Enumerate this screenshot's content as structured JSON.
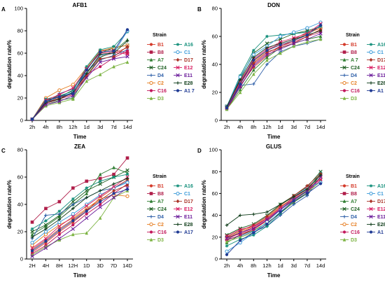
{
  "chart_data": [
    {
      "panel": "A",
      "type": "line",
      "title": "AFB1",
      "xlabel": "Time",
      "ylabel": "degradation rate%",
      "categories": [
        "2h",
        "4h",
        "8h",
        "12h",
        "1d",
        "3d",
        "7d",
        "14d"
      ],
      "ylim": [
        0,
        100
      ],
      "yticks": [
        0,
        20,
        40,
        60,
        80,
        100
      ],
      "legend_title": "Strain",
      "series": [
        {
          "name": "B1",
          "color": "#d43a2a",
          "marker": "circle",
          "values": [
            1,
            16,
            20,
            25,
            42,
            57,
            60,
            65
          ]
        },
        {
          "name": "B8",
          "color": "#b01e4a",
          "marker": "square",
          "values": [
            1,
            17,
            22,
            24,
            45,
            62,
            63,
            60
          ]
        },
        {
          "name": "A7",
          "color": "#2f7d32",
          "marker": "triangle",
          "values": [
            1,
            14,
            18,
            20,
            40,
            56,
            62,
            72
          ]
        },
        {
          "name": "C24",
          "color": "#1b5e20",
          "marker": "x",
          "values": [
            1,
            18,
            21,
            27,
            46,
            60,
            65,
            67
          ]
        },
        {
          "name": "D4",
          "color": "#2e5fa8",
          "marker": "cross",
          "values": [
            1,
            15,
            24,
            28,
            44,
            54,
            58,
            63
          ]
        },
        {
          "name": "C2",
          "color": "#e67e22",
          "marker": "circle-open",
          "values": [
            1,
            20,
            27,
            32,
            47,
            62,
            65,
            67
          ]
        },
        {
          "name": "C16",
          "color": "#c2185b",
          "marker": "circle",
          "values": [
            1,
            15,
            19,
            23,
            41,
            48,
            56,
            62
          ]
        },
        {
          "name": "D3",
          "color": "#7cb342",
          "marker": "triangle",
          "values": [
            1,
            13,
            16,
            19,
            35,
            41,
            48,
            52
          ]
        },
        {
          "name": "A16",
          "color": "#138f7a",
          "marker": "star",
          "values": [
            1,
            19,
            22,
            26,
            48,
            63,
            66,
            79
          ]
        },
        {
          "name": "C1",
          "color": "#3a9ad9",
          "marker": "circle-open",
          "values": [
            1,
            17,
            21,
            25,
            43,
            58,
            60,
            80
          ]
        },
        {
          "name": "D17",
          "color": "#a93226",
          "marker": "diamond",
          "values": [
            1,
            16,
            20,
            24,
            39,
            55,
            57,
            66
          ]
        },
        {
          "name": "E12",
          "color": "#d81b60",
          "marker": "x",
          "values": [
            1,
            18,
            23,
            29,
            46,
            60,
            61,
            59
          ]
        },
        {
          "name": "E11",
          "color": "#6a1b9a",
          "marker": "x",
          "values": [
            1,
            14,
            17,
            22,
            38,
            52,
            55,
            57
          ]
        },
        {
          "name": "E28",
          "color": "#0d3b18",
          "marker": "cross",
          "values": [
            1,
            16,
            19,
            25,
            42,
            59,
            60,
            71
          ]
        },
        {
          "name": "A1 7",
          "color": "#1f3a93",
          "marker": "circle",
          "values": [
            1,
            17,
            21,
            24,
            45,
            61,
            62,
            81
          ]
        }
      ]
    },
    {
      "panel": "B",
      "type": "line",
      "title": "DON",
      "xlabel": "Time",
      "ylabel": "degradation rate%",
      "categories": [
        "2h",
        "4h",
        "8h",
        "12h",
        "1d",
        "3d",
        "7d",
        "14d"
      ],
      "ylim": [
        0,
        80
      ],
      "yticks": [
        0,
        20,
        40,
        60,
        80
      ],
      "legend_title": "Strain",
      "series": [
        {
          "name": "B1",
          "color": "#d43a2a",
          "marker": "circle",
          "values": [
            9,
            25,
            38,
            46,
            53,
            57,
            61,
            64
          ]
        },
        {
          "name": "B8",
          "color": "#b01e4a",
          "marker": "square",
          "values": [
            10,
            28,
            43,
            50,
            55,
            58,
            63,
            66
          ]
        },
        {
          "name": "A 7",
          "color": "#2f7d32",
          "marker": "triangle",
          "values": [
            8,
            22,
            36,
            45,
            52,
            55,
            58,
            60
          ]
        },
        {
          "name": "C24",
          "color": "#1b5e20",
          "marker": "x",
          "values": [
            10,
            30,
            48,
            55,
            58,
            62,
            64,
            67
          ]
        },
        {
          "name": "D4",
          "color": "#2e5fa8",
          "marker": "cross",
          "values": [
            9,
            25,
            26,
            40,
            49,
            53,
            55,
            58
          ]
        },
        {
          "name": "C2",
          "color": "#e67e22",
          "marker": "circle-open",
          "values": [
            9,
            27,
            42,
            50,
            54,
            57,
            62,
            66
          ]
        },
        {
          "name": "C16",
          "color": "#c2185b",
          "marker": "circle",
          "values": [
            8,
            24,
            40,
            48,
            53,
            56,
            60,
            63
          ]
        },
        {
          "name": "D3",
          "color": "#7cb342",
          "marker": "triangle",
          "values": [
            8,
            20,
            33,
            43,
            48,
            53,
            56,
            58
          ]
        },
        {
          "name": "A16",
          "color": "#138f7a",
          "marker": "star",
          "values": [
            10,
            32,
            50,
            60,
            61,
            62,
            63,
            67
          ]
        },
        {
          "name": "C1",
          "color": "#3a9ad9",
          "marker": "circle-open",
          "values": [
            10,
            31,
            47,
            53,
            60,
            63,
            66,
            70
          ]
        },
        {
          "name": "D17",
          "color": "#a93226",
          "marker": "diamond",
          "values": [
            9,
            26,
            41,
            49,
            52,
            55,
            60,
            65
          ]
        },
        {
          "name": "E12",
          "color": "#d81b60",
          "marker": "x",
          "values": [
            9,
            27,
            44,
            51,
            56,
            59,
            62,
            69
          ]
        },
        {
          "name": "E11",
          "color": "#6a1b9a",
          "marker": "x",
          "values": [
            9,
            24,
            39,
            47,
            51,
            55,
            58,
            62
          ]
        },
        {
          "name": "E28",
          "color": "#0d3b18",
          "marker": "cross",
          "values": [
            10,
            29,
            45,
            52,
            55,
            58,
            61,
            64
          ]
        },
        {
          "name": "A1 7",
          "color": "#1f3a93",
          "marker": "circle",
          "values": [
            9,
            26,
            43,
            50,
            54,
            57,
            61,
            68
          ]
        }
      ]
    },
    {
      "panel": "C",
      "type": "line",
      "title": "ZEA",
      "xlabel": "Time",
      "ylabel": "degradation rate%",
      "categories": [
        "2H",
        "4H",
        "8H",
        "12H",
        "1D",
        "3D",
        "7D",
        "14D"
      ],
      "ylim": [
        0,
        80
      ],
      "yticks": [
        0,
        20,
        40,
        60,
        80
      ],
      "legend_title": "Strain",
      "series": [
        {
          "name": "B1",
          "color": "#d43a2a",
          "marker": "circle",
          "values": [
            5,
            12,
            20,
            27,
            35,
            45,
            52,
            58
          ]
        },
        {
          "name": "B8",
          "color": "#b01e4a",
          "marker": "square",
          "values": [
            27,
            37,
            42,
            52,
            57,
            59,
            62,
            74
          ]
        },
        {
          "name": "A7",
          "color": "#2f7d32",
          "marker": "triangle",
          "values": [
            18,
            24,
            31,
            40,
            48,
            62,
            67,
            63
          ]
        },
        {
          "name": "C24",
          "color": "#1b5e20",
          "marker": "x",
          "values": [
            20,
            25,
            32,
            42,
            50,
            55,
            60,
            65
          ]
        },
        {
          "name": "D4",
          "color": "#2e5fa8",
          "marker": "cross",
          "values": [
            15,
            32,
            33,
            40,
            45,
            50,
            52,
            57
          ]
        },
        {
          "name": "C2",
          "color": "#e67e22",
          "marker": "circle-open",
          "values": [
            10,
            18,
            25,
            30,
            37,
            44,
            47,
            46
          ]
        },
        {
          "name": "C16",
          "color": "#c2185b",
          "marker": "circle",
          "values": [
            4,
            10,
            18,
            25,
            33,
            40,
            48,
            55
          ]
        },
        {
          "name": "D3",
          "color": "#7cb342",
          "marker": "triangle",
          "values": [
            3,
            9,
            14,
            18,
            19,
            30,
            45,
            50
          ]
        },
        {
          "name": "A16",
          "color": "#138f7a",
          "marker": "star",
          "values": [
            22,
            28,
            35,
            44,
            52,
            57,
            60,
            62
          ]
        },
        {
          "name": "C1",
          "color": "#3a9ad9",
          "marker": "circle-open",
          "values": [
            12,
            20,
            27,
            33,
            40,
            47,
            52,
            56
          ]
        },
        {
          "name": "D17",
          "color": "#a93226",
          "marker": "diamond",
          "values": [
            7,
            14,
            22,
            29,
            36,
            43,
            50,
            54
          ]
        },
        {
          "name": "E12",
          "color": "#d81b60",
          "marker": "x",
          "values": [
            8,
            15,
            24,
            31,
            39,
            46,
            53,
            60
          ]
        },
        {
          "name": "E11",
          "color": "#6a1b9a",
          "marker": "x",
          "values": [
            2,
            8,
            15,
            22,
            30,
            38,
            45,
            52
          ]
        },
        {
          "name": "E28",
          "color": "#0d3b18",
          "marker": "cross",
          "values": [
            16,
            22,
            29,
            37,
            45,
            50,
            55,
            59
          ]
        },
        {
          "name": "A17",
          "color": "#1f3a93",
          "marker": "circle",
          "values": [
            6,
            13,
            21,
            28,
            35,
            42,
            48,
            51
          ]
        }
      ]
    },
    {
      "panel": "D",
      "type": "line",
      "title": "GLUS",
      "xlabel": "Time",
      "ylabel": "degradation rate%",
      "categories": [
        "2h",
        "4h",
        "8h",
        "12h",
        "1d",
        "3d",
        "7d",
        "14d"
      ],
      "ylim": [
        0,
        100
      ],
      "yticks": [
        0,
        20,
        40,
        60,
        80,
        100
      ],
      "legend_title": "Strain",
      "series": [
        {
          "name": "B1",
          "color": "#d43a2a",
          "marker": "circle",
          "values": [
            20,
            23,
            27,
            35,
            45,
            55,
            63,
            75
          ]
        },
        {
          "name": "B8",
          "color": "#b01e4a",
          "marker": "square",
          "values": [
            18,
            24,
            29,
            37,
            47,
            57,
            65,
            77
          ]
        },
        {
          "name": "A7",
          "color": "#2f7d32",
          "marker": "triangle",
          "values": [
            15,
            22,
            26,
            33,
            42,
            52,
            60,
            78
          ]
        },
        {
          "name": "C24",
          "color": "#1b5e20",
          "marker": "x",
          "values": [
            22,
            28,
            32,
            40,
            50,
            58,
            66,
            80
          ]
        },
        {
          "name": "D4",
          "color": "#2e5fa8",
          "marker": "cross",
          "values": [
            18,
            21,
            25,
            30,
            40,
            50,
            58,
            76
          ]
        },
        {
          "name": "C2",
          "color": "#e67e22",
          "marker": "circle-open",
          "values": [
            19,
            25,
            30,
            38,
            48,
            56,
            64,
            74
          ]
        },
        {
          "name": "C16",
          "color": "#c2185b",
          "marker": "circle",
          "values": [
            17,
            22,
            27,
            36,
            46,
            55,
            62,
            72
          ]
        },
        {
          "name": "D3",
          "color": "#7cb342",
          "marker": "triangle",
          "values": [
            16,
            20,
            24,
            32,
            43,
            53,
            61,
            71
          ]
        },
        {
          "name": "A16",
          "color": "#138f7a",
          "marker": "star",
          "values": [
            12,
            18,
            22,
            30,
            42,
            54,
            63,
            79
          ]
        },
        {
          "name": "C1",
          "color": "#3a9ad9",
          "marker": "circle-open",
          "values": [
            7,
            15,
            24,
            34,
            45,
            57,
            65,
            70
          ]
        },
        {
          "name": "D17",
          "color": "#a93226",
          "marker": "diamond",
          "values": [
            20,
            26,
            31,
            39,
            49,
            58,
            67,
            78
          ]
        },
        {
          "name": "E12",
          "color": "#d81b60",
          "marker": "x",
          "values": [
            21,
            27,
            30,
            37,
            47,
            56,
            64,
            73
          ]
        },
        {
          "name": "E11",
          "color": "#6a1b9a",
          "marker": "x",
          "values": [
            19,
            24,
            28,
            36,
            45,
            54,
            62,
            75
          ]
        },
        {
          "name": "E28",
          "color": "#0d3b18",
          "marker": "cross",
          "values": [
            31,
            40,
            41,
            43,
            50,
            57,
            64,
            77
          ]
        },
        {
          "name": "A1 7",
          "color": "#1f3a93",
          "marker": "circle",
          "values": [
            4,
            17,
            24,
            32,
            43,
            53,
            60,
            69
          ]
        }
      ]
    }
  ]
}
